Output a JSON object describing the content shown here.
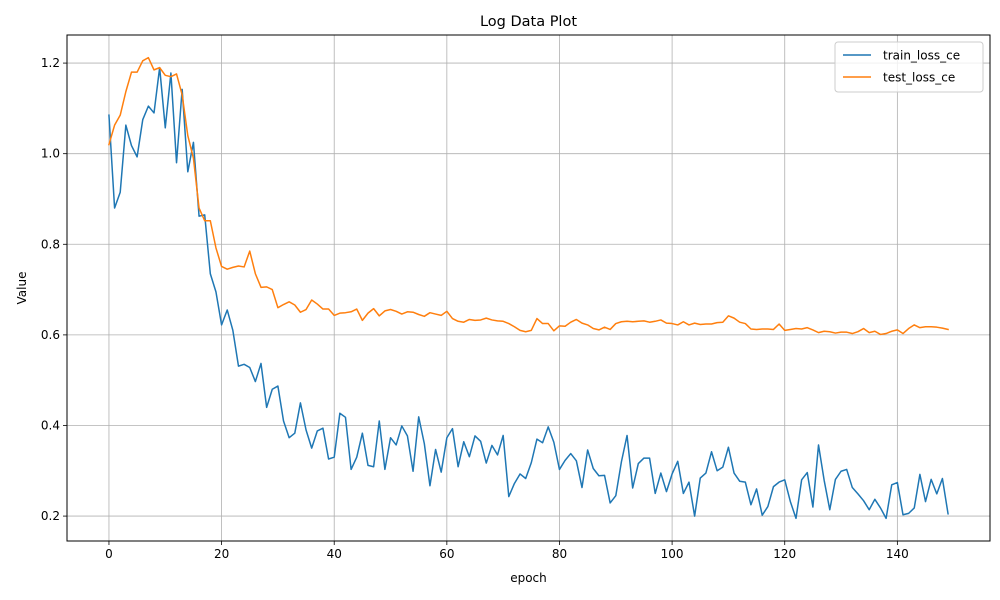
{
  "chart_data": {
    "type": "line",
    "title": "Log Data Plot",
    "xlabel": "epoch",
    "ylabel": "Value",
    "xlim": [
      -7.45,
      156.45
    ],
    "ylim": [
      0.145,
      1.262
    ],
    "xticks": [
      0,
      20,
      40,
      60,
      80,
      100,
      120,
      140
    ],
    "yticks": [
      0.2,
      0.4,
      0.6,
      0.8,
      1.0,
      1.2
    ],
    "xtick_labels": [
      "0",
      "20",
      "40",
      "60",
      "80",
      "100",
      "120",
      "140"
    ],
    "ytick_labels": [
      "0.2",
      "0.4",
      "0.6",
      "0.8",
      "1.0",
      "1.2"
    ],
    "grid": true,
    "legend_position": "top-right",
    "series": [
      {
        "name": "train_loss_ce",
        "color": "#1f77b4",
        "values": [
          1.085,
          0.88,
          0.915,
          1.063,
          1.018,
          0.993,
          1.075,
          1.105,
          1.09,
          1.19,
          1.057,
          1.178,
          0.98,
          1.142,
          0.96,
          1.025,
          0.862,
          0.865,
          0.735,
          0.695,
          0.622,
          0.655,
          0.61,
          0.531,
          0.535,
          0.528,
          0.497,
          0.537,
          0.44,
          0.48,
          0.487,
          0.41,
          0.373,
          0.383,
          0.45,
          0.39,
          0.35,
          0.388,
          0.394,
          0.326,
          0.33,
          0.427,
          0.418,
          0.303,
          0.33,
          0.383,
          0.312,
          0.309,
          0.41,
          0.303,
          0.373,
          0.357,
          0.399,
          0.377,
          0.299,
          0.419,
          0.36,
          0.267,
          0.347,
          0.297,
          0.373,
          0.393,
          0.309,
          0.364,
          0.331,
          0.377,
          0.365,
          0.317,
          0.356,
          0.335,
          0.378,
          0.243,
          0.272,
          0.293,
          0.283,
          0.318,
          0.37,
          0.362,
          0.397,
          0.363,
          0.303,
          0.323,
          0.338,
          0.322,
          0.263,
          0.346,
          0.305,
          0.289,
          0.29,
          0.229,
          0.245,
          0.32,
          0.378,
          0.262,
          0.316,
          0.328,
          0.328,
          0.25,
          0.295,
          0.254,
          0.293,
          0.321,
          0.25,
          0.275,
          0.2,
          0.284,
          0.295,
          0.342,
          0.3,
          0.308,
          0.352,
          0.295,
          0.277,
          0.275,
          0.225,
          0.26,
          0.202,
          0.221,
          0.265,
          0.275,
          0.28,
          0.232,
          0.195,
          0.28,
          0.296,
          0.22,
          0.357,
          0.279,
          0.214,
          0.281,
          0.299,
          0.303,
          0.263,
          0.249,
          0.234,
          0.214,
          0.237,
          0.218,
          0.195,
          0.269,
          0.274,
          0.203,
          0.206,
          0.218,
          0.292,
          0.232,
          0.281,
          0.249,
          0.283,
          0.205
        ]
      },
      {
        "name": "test_loss_ce",
        "color": "#ff7f0e",
        "values": [
          1.02,
          1.063,
          1.085,
          1.137,
          1.18,
          1.18,
          1.205,
          1.212,
          1.185,
          1.19,
          1.173,
          1.17,
          1.176,
          1.13,
          1.04,
          0.99,
          0.88,
          0.852,
          0.852,
          0.792,
          0.751,
          0.745,
          0.749,
          0.752,
          0.75,
          0.785,
          0.735,
          0.705,
          0.706,
          0.7,
          0.66,
          0.667,
          0.673,
          0.666,
          0.65,
          0.656,
          0.677,
          0.668,
          0.657,
          0.657,
          0.643,
          0.648,
          0.649,
          0.651,
          0.657,
          0.632,
          0.648,
          0.658,
          0.642,
          0.653,
          0.656,
          0.652,
          0.646,
          0.651,
          0.65,
          0.645,
          0.641,
          0.649,
          0.646,
          0.643,
          0.652,
          0.636,
          0.63,
          0.628,
          0.634,
          0.632,
          0.633,
          0.637,
          0.633,
          0.631,
          0.63,
          0.625,
          0.618,
          0.61,
          0.607,
          0.61,
          0.636,
          0.625,
          0.625,
          0.609,
          0.62,
          0.619,
          0.628,
          0.634,
          0.626,
          0.622,
          0.614,
          0.611,
          0.617,
          0.612,
          0.625,
          0.629,
          0.63,
          0.629,
          0.63,
          0.631,
          0.628,
          0.63,
          0.633,
          0.626,
          0.625,
          0.622,
          0.629,
          0.622,
          0.626,
          0.623,
          0.624,
          0.624,
          0.627,
          0.628,
          0.642,
          0.637,
          0.628,
          0.625,
          0.613,
          0.612,
          0.613,
          0.613,
          0.612,
          0.624,
          0.61,
          0.612,
          0.614,
          0.613,
          0.616,
          0.611,
          0.605,
          0.608,
          0.607,
          0.604,
          0.606,
          0.606,
          0.603,
          0.607,
          0.614,
          0.605,
          0.608,
          0.601,
          0.603,
          0.608,
          0.611,
          0.603,
          0.614,
          0.622,
          0.616,
          0.618,
          0.618,
          0.617,
          0.615,
          0.612
        ]
      }
    ]
  }
}
